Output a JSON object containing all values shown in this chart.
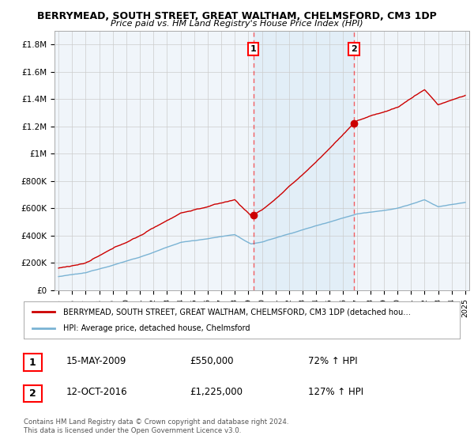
{
  "title": "BERRYMEAD, SOUTH STREET, GREAT WALTHAM, CHELMSFORD, CM3 1DP",
  "subtitle": "Price paid vs. HM Land Registry's House Price Index (HPI)",
  "ylim": [
    0,
    1900000
  ],
  "yticks": [
    0,
    200000,
    400000,
    600000,
    800000,
    1000000,
    1200000,
    1400000,
    1600000,
    1800000
  ],
  "ytick_labels": [
    "£0",
    "£200K",
    "£400K",
    "£600K",
    "£800K",
    "£1M",
    "£1.2M",
    "£1.4M",
    "£1.6M",
    "£1.8M"
  ],
  "xmin_year": 1995,
  "xmax_year": 2025,
  "xtick_years": [
    1995,
    1996,
    1997,
    1998,
    1999,
    2000,
    2001,
    2002,
    2003,
    2004,
    2005,
    2006,
    2007,
    2008,
    2009,
    2010,
    2011,
    2012,
    2013,
    2014,
    2015,
    2016,
    2017,
    2018,
    2019,
    2020,
    2021,
    2022,
    2023,
    2024,
    2025
  ],
  "sale1_x": 2009.37,
  "sale1_y": 550000,
  "sale1_label": "1",
  "sale2_x": 2016.79,
  "sale2_y": 1225000,
  "sale2_label": "2",
  "hpi_color": "#7ab3d4",
  "price_color": "#cc0000",
  "background_color": "#ffffff",
  "plot_bg_color": "#f0f5fa",
  "shade_color": "#d6e8f5",
  "grid_color": "#cccccc",
  "legend_line1": "BERRYMEAD, SOUTH STREET, GREAT WALTHAM, CHELMSFORD, CM3 1DP (detached hou…",
  "legend_line2": "HPI: Average price, detached house, Chelmsford",
  "annotation1_date": "15-MAY-2009",
  "annotation1_price": "£550,000",
  "annotation1_hpi": "72% ↑ HPI",
  "annotation2_date": "12-OCT-2016",
  "annotation2_price": "£1,225,000",
  "annotation2_hpi": "127% ↑ HPI",
  "footnote": "Contains HM Land Registry data © Crown copyright and database right 2024.\nThis data is licensed under the Open Government Licence v3.0."
}
